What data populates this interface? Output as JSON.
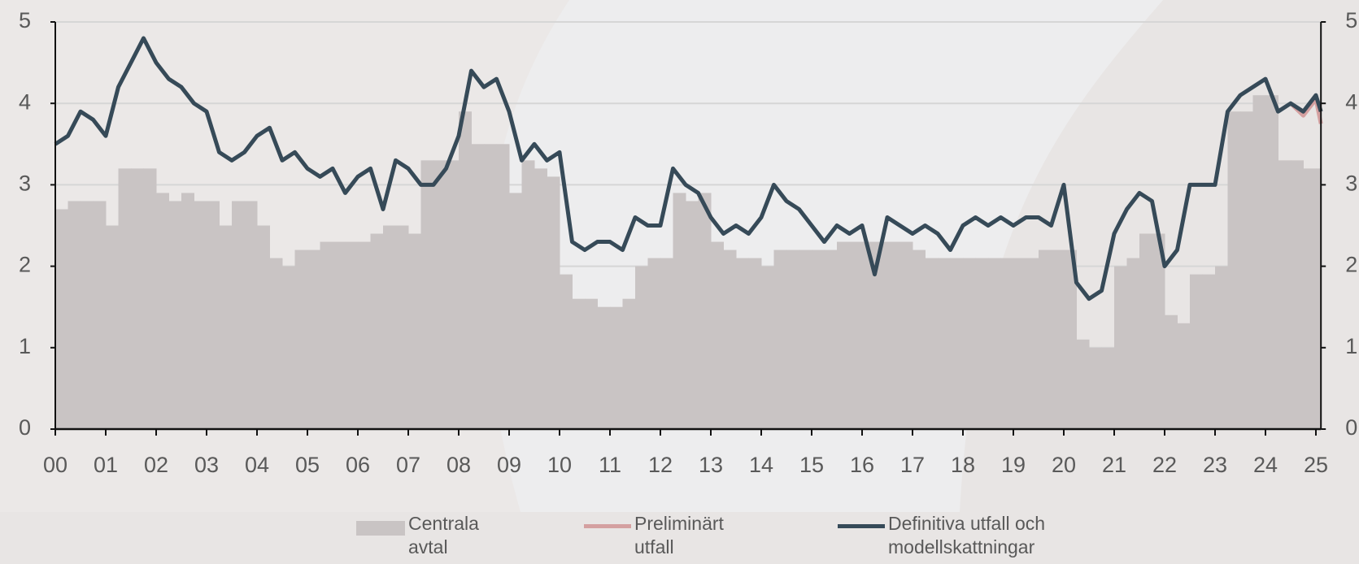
{
  "chart_data": {
    "type": "line",
    "legend": "bottom",
    "grid": true,
    "xlim": [
      0,
      25.1
    ],
    "ylim": [
      0,
      5
    ],
    "yticks": [
      0,
      1,
      2,
      3,
      4,
      5
    ],
    "xticks": [
      {
        "value": 0,
        "label": "00"
      },
      {
        "value": 1,
        "label": "01"
      },
      {
        "value": 2,
        "label": "02"
      },
      {
        "value": 3,
        "label": "03"
      },
      {
        "value": 4,
        "label": "04"
      },
      {
        "value": 5,
        "label": "05"
      },
      {
        "value": 6,
        "label": "06"
      },
      {
        "value": 7,
        "label": "07"
      },
      {
        "value": 8,
        "label": "08"
      },
      {
        "value": 9,
        "label": "09"
      },
      {
        "value": 10,
        "label": "10"
      },
      {
        "value": 11,
        "label": "11"
      },
      {
        "value": 12,
        "label": "12"
      },
      {
        "value": 13,
        "label": "13"
      },
      {
        "value": 14,
        "label": "14"
      },
      {
        "value": 15,
        "label": "15"
      },
      {
        "value": 16,
        "label": "16"
      },
      {
        "value": 17,
        "label": "17"
      },
      {
        "value": 18,
        "label": "18"
      },
      {
        "value": 19,
        "label": "19"
      },
      {
        "value": 20,
        "label": "20"
      },
      {
        "value": 21,
        "label": "21"
      },
      {
        "value": 22,
        "label": "22"
      },
      {
        "value": 23,
        "label": "23"
      },
      {
        "value": 24,
        "label": "24"
      },
      {
        "value": 25,
        "label": "25"
      }
    ],
    "series": [
      {
        "name": "Centrala avtal",
        "type": "area",
        "color": "#c9c4c4",
        "x": [
          0,
          0.25,
          0.5,
          0.75,
          1,
          1.25,
          1.5,
          1.75,
          2,
          2.25,
          2.5,
          2.75,
          3,
          3.25,
          3.5,
          3.75,
          4,
          4.25,
          4.5,
          4.75,
          5,
          5.25,
          5.5,
          5.75,
          6,
          6.25,
          6.5,
          6.75,
          7,
          7.25,
          7.5,
          7.75,
          8,
          8.25,
          8.5,
          8.75,
          9,
          9.25,
          9.5,
          9.75,
          10,
          10.25,
          10.5,
          10.75,
          11,
          11.25,
          11.5,
          11.75,
          12,
          12.25,
          12.5,
          12.75,
          13,
          13.25,
          13.5,
          13.75,
          14,
          14.25,
          14.5,
          14.75,
          15,
          15.25,
          15.5,
          15.75,
          16,
          16.25,
          16.5,
          16.75,
          17,
          17.25,
          17.5,
          17.75,
          18,
          18.25,
          18.5,
          18.75,
          19,
          19.25,
          19.5,
          19.75,
          20,
          20.25,
          20.5,
          20.75,
          21,
          21.25,
          21.5,
          21.75,
          22,
          22.25,
          22.5,
          22.75,
          23,
          23.25,
          23.5,
          23.75,
          24,
          24.25,
          24.5,
          24.75,
          25
        ],
        "values": [
          2.7,
          2.8,
          2.8,
          2.8,
          2.5,
          3.2,
          3.2,
          3.2,
          2.9,
          2.8,
          2.9,
          2.8,
          2.8,
          2.5,
          2.8,
          2.8,
          2.5,
          2.1,
          2.0,
          2.2,
          2.2,
          2.3,
          2.3,
          2.3,
          2.3,
          2.4,
          2.5,
          2.5,
          2.4,
          3.3,
          3.3,
          3.3,
          3.9,
          3.5,
          3.5,
          3.5,
          2.9,
          3.3,
          3.2,
          3.1,
          1.9,
          1.6,
          1.6,
          1.5,
          1.5,
          1.6,
          2.0,
          2.1,
          2.1,
          2.9,
          2.8,
          2.9,
          2.3,
          2.2,
          2.1,
          2.1,
          2.0,
          2.2,
          2.2,
          2.2,
          2.2,
          2.2,
          2.3,
          2.3,
          2.3,
          2.3,
          2.3,
          2.3,
          2.2,
          2.1,
          2.1,
          2.1,
          2.1,
          2.1,
          2.1,
          2.1,
          2.1,
          2.1,
          2.2,
          2.2,
          2.2,
          1.1,
          1.0,
          1.0,
          2.0,
          2.1,
          2.4,
          2.4,
          1.4,
          1.3,
          1.9,
          1.9,
          2.0,
          3.9,
          3.9,
          4.1,
          4.1,
          3.3,
          3.3,
          3.2,
          3.2
        ]
      },
      {
        "name": "Preliminärt utfall",
        "type": "line",
        "color": "#d4a0a0",
        "x": [
          24.5,
          24.75,
          25,
          25.1
        ],
        "values": [
          4.0,
          3.85,
          4.05,
          3.75
        ]
      },
      {
        "name": "Definitiva utfall och modellskattningar",
        "type": "line",
        "color": "#364a58",
        "x": [
          0,
          0.25,
          0.5,
          0.75,
          1,
          1.25,
          1.5,
          1.75,
          2,
          2.25,
          2.5,
          2.75,
          3,
          3.25,
          3.5,
          3.75,
          4,
          4.25,
          4.5,
          4.75,
          5,
          5.25,
          5.5,
          5.75,
          6,
          6.25,
          6.5,
          6.75,
          7,
          7.25,
          7.5,
          7.75,
          8,
          8.25,
          8.5,
          8.75,
          9,
          9.25,
          9.5,
          9.75,
          10,
          10.25,
          10.5,
          10.75,
          11,
          11.25,
          11.5,
          11.75,
          12,
          12.25,
          12.5,
          12.75,
          13,
          13.25,
          13.5,
          13.75,
          14,
          14.25,
          14.5,
          14.75,
          15,
          15.25,
          15.5,
          15.75,
          16,
          16.25,
          16.5,
          16.75,
          17,
          17.25,
          17.5,
          17.75,
          18,
          18.25,
          18.5,
          18.75,
          19,
          19.25,
          19.5,
          19.75,
          20,
          20.25,
          20.5,
          20.75,
          21,
          21.25,
          21.5,
          21.75,
          22,
          22.25,
          22.5,
          22.75,
          23,
          23.25,
          23.5,
          23.75,
          24,
          24.25,
          24.5,
          24.75,
          25,
          25.1
        ],
        "values": [
          3.5,
          3.6,
          3.9,
          3.8,
          3.6,
          4.2,
          4.5,
          4.8,
          4.5,
          4.3,
          4.2,
          4.0,
          3.9,
          3.4,
          3.3,
          3.4,
          3.6,
          3.7,
          3.3,
          3.4,
          3.2,
          3.1,
          3.2,
          2.9,
          3.1,
          3.2,
          2.7,
          3.3,
          3.2,
          3.0,
          3.0,
          3.2,
          3.6,
          4.4,
          4.2,
          4.3,
          3.9,
          3.3,
          3.5,
          3.3,
          3.4,
          2.3,
          2.2,
          2.3,
          2.3,
          2.2,
          2.6,
          2.5,
          2.5,
          3.2,
          3.0,
          2.9,
          2.6,
          2.4,
          2.5,
          2.4,
          2.6,
          3.0,
          2.8,
          2.7,
          2.5,
          2.3,
          2.5,
          2.4,
          2.5,
          1.9,
          2.6,
          2.5,
          2.4,
          2.5,
          2.4,
          2.2,
          2.5,
          2.6,
          2.5,
          2.6,
          2.5,
          2.6,
          2.6,
          2.5,
          3.0,
          1.8,
          1.6,
          1.7,
          2.4,
          2.7,
          2.9,
          2.8,
          2.0,
          2.2,
          3.0,
          3.0,
          3.0,
          3.9,
          4.1,
          4.2,
          4.3,
          3.9,
          4.0,
          3.9,
          4.1,
          3.9
        ]
      }
    ]
  }
}
